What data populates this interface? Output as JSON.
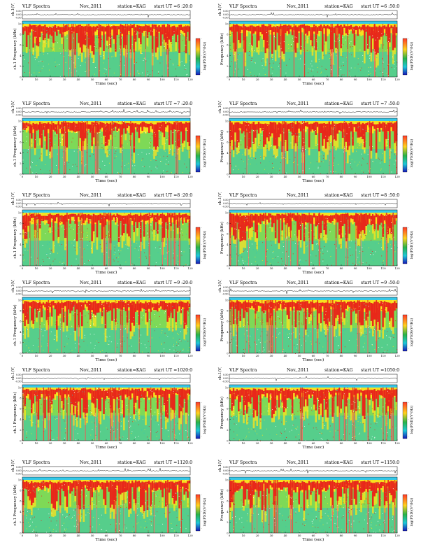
{
  "panels": [
    {
      "title": "VLF Spectra",
      "date": "Nov.,2011",
      "station": "station=KAG",
      "start": "start  UT =6 :20:0",
      "side": "left"
    },
    {
      "title": "VLF Spectra",
      "date": "Nov.,2011",
      "station": "station=KAG",
      "start": "start  UT =6 :50:0",
      "side": "right"
    },
    {
      "title": "VLF Spectra",
      "date": "Nov.,2011",
      "station": "station=KAG",
      "start": "start  UT =7 :20:0",
      "side": "left"
    },
    {
      "title": "VLF Spectra",
      "date": "Nov.,2011",
      "station": "station=KAG",
      "start": "start  UT =7 :50:0",
      "side": "right"
    },
    {
      "title": "VLF Spectra",
      "date": "Nov.,2011",
      "station": "station=KAG",
      "start": "start  UT =8 :20:0",
      "side": "left"
    },
    {
      "title": "VLF Spectra",
      "date": "Nov.,2011",
      "station": "station=KAG",
      "start": "start  UT =8 :50:0",
      "side": "right"
    },
    {
      "title": "VLF Spectra",
      "date": "Nov.,2011",
      "station": "station=KAG",
      "start": "start  UT =9 :20:0",
      "side": "left"
    },
    {
      "title": "VLF Spectra",
      "date": "Nov.,2011",
      "station": "station=KAG",
      "start": "start  UT =9 :50:0",
      "side": "right"
    },
    {
      "title": "VLF Spectra",
      "date": "Nov.,2011",
      "station": "station=KAG",
      "start": "start  UT =1020:0",
      "side": "left"
    },
    {
      "title": "VLF Spectra",
      "date": "Nov.,2011",
      "station": "station=KAG",
      "start": "start  UT =1050:0",
      "side": "right"
    },
    {
      "title": "VLF Spectra",
      "date": "Nov.,2011",
      "station": "station=KAG",
      "start": "start  UT =1120:0",
      "side": "left"
    },
    {
      "title": "VLF Spectra",
      "date": "Nov.,2011",
      "station": "station=KAG",
      "start": "start  UT =1150:0",
      "side": "right"
    }
  ],
  "labels": {
    "ch_axis": "ch.1(V)",
    "freq_axis_left": "ch.1\nFrequency (kHz)",
    "freq_axis_right": "Frequency (kHz)",
    "time_axis": "Time  (sec)",
    "colorbar": "log(PSD)(V²/Hz)"
  },
  "chart_data": {
    "type": "heatmap",
    "x_range": [
      0,
      120
    ],
    "x_ticks": [
      "0",
      "10",
      "20",
      "30",
      "40",
      "50",
      "60",
      "70",
      "80",
      "90",
      "100",
      "110",
      "120"
    ],
    "y_range_khz": [
      0,
      10
    ],
    "y_ticks": [
      "0",
      "2",
      "4",
      "6",
      "8",
      "10"
    ],
    "ch_ticks": [
      "0.50",
      "0.00",
      "-0.50"
    ],
    "colorbar_ticks": [
      "-",
      "-",
      "-"
    ],
    "colors": {
      "high": "#e8281a",
      "mid_high": "#f7e21f",
      "mid": "#7ed957",
      "low": "#35c4b6",
      "top_band": "#36c8e8",
      "colorbar_top": "#ff3a2a",
      "colorbar_mid": "#29b24a",
      "colorbar_bottom": "#1818b8"
    },
    "panels_count": 12
  }
}
